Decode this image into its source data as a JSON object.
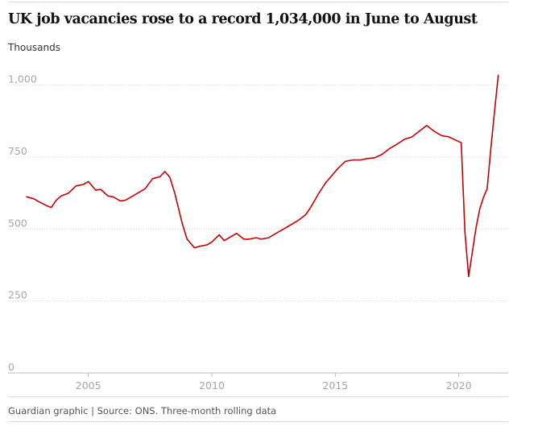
{
  "header": {
    "title": "UK job vacancies rose to a record 1,034,000 in June to August",
    "unit": "Thousands"
  },
  "footer": {
    "source": "Guardian graphic | Source: ONS. Three-month rolling data"
  },
  "colors": {
    "series": "#c70000",
    "grid": "#cccccc",
    "tick_text": "#a6a6a6"
  },
  "chart_data": {
    "type": "line",
    "title": "UK job vacancies rose to a record 1,034,000 in June to August",
    "ylabel": "Thousands",
    "xlabel": "",
    "xlim": [
      2001.75,
      2022.0
    ],
    "ylim": [
      0,
      1100
    ],
    "y_ticks": [
      0,
      250,
      500,
      750,
      1000
    ],
    "y_tick_labels": [
      "0",
      "250",
      "500",
      "750",
      "1,000"
    ],
    "x_ticks": [
      2005,
      2010,
      2015,
      2020
    ],
    "x_tick_labels": [
      "2005",
      "2010",
      "2015",
      "2020"
    ],
    "grid": "horizontal dotted",
    "legend": "none",
    "series": [
      {
        "x": [
          2002.5,
          2002.8,
          2003.0,
          2003.3,
          2003.5,
          2003.7,
          2003.9,
          2004.2,
          2004.5,
          2004.8,
          2005.0,
          2005.3,
          2005.5,
          2005.8,
          2006.0,
          2006.3,
          2006.5,
          2006.8,
          2007.0,
          2007.3,
          2007.6,
          2007.9,
          2008.1,
          2008.3,
          2008.5,
          2008.8,
          2009.0,
          2009.3,
          2009.5,
          2009.8,
          2010.0,
          2010.3,
          2010.5,
          2010.8,
          2011.0,
          2011.3,
          2011.5,
          2011.8,
          2012.0,
          2012.3,
          2012.6,
          2012.9,
          2013.2,
          2013.5,
          2013.8,
          2014.0,
          2014.3,
          2014.6,
          2014.9,
          2015.1,
          2015.4,
          2015.7,
          2016.0,
          2016.3,
          2016.6,
          2016.9,
          2017.2,
          2017.5,
          2017.8,
          2018.1,
          2018.4,
          2018.7,
          2019.0,
          2019.3,
          2019.6,
          2019.9,
          2020.1,
          2020.25,
          2020.4,
          2020.55,
          2020.7,
          2020.85,
          2021.0,
          2021.15,
          2021.3,
          2021.45,
          2021.6
        ],
        "y": [
          612,
          605,
          595,
          582,
          575,
          600,
          615,
          625,
          650,
          655,
          665,
          635,
          638,
          615,
          612,
          598,
          600,
          615,
          625,
          640,
          675,
          682,
          700,
          680,
          625,
          520,
          465,
          435,
          440,
          445,
          455,
          480,
          460,
          475,
          485,
          465,
          465,
          470,
          465,
          470,
          485,
          500,
          515,
          530,
          550,
          575,
          620,
          660,
          690,
          710,
          735,
          740,
          740,
          745,
          748,
          760,
          780,
          795,
          812,
          820,
          840,
          860,
          840,
          825,
          820,
          808,
          800,
          490,
          335,
          420,
          505,
          570,
          610,
          640,
          780,
          910,
          1034
        ]
      }
    ]
  }
}
